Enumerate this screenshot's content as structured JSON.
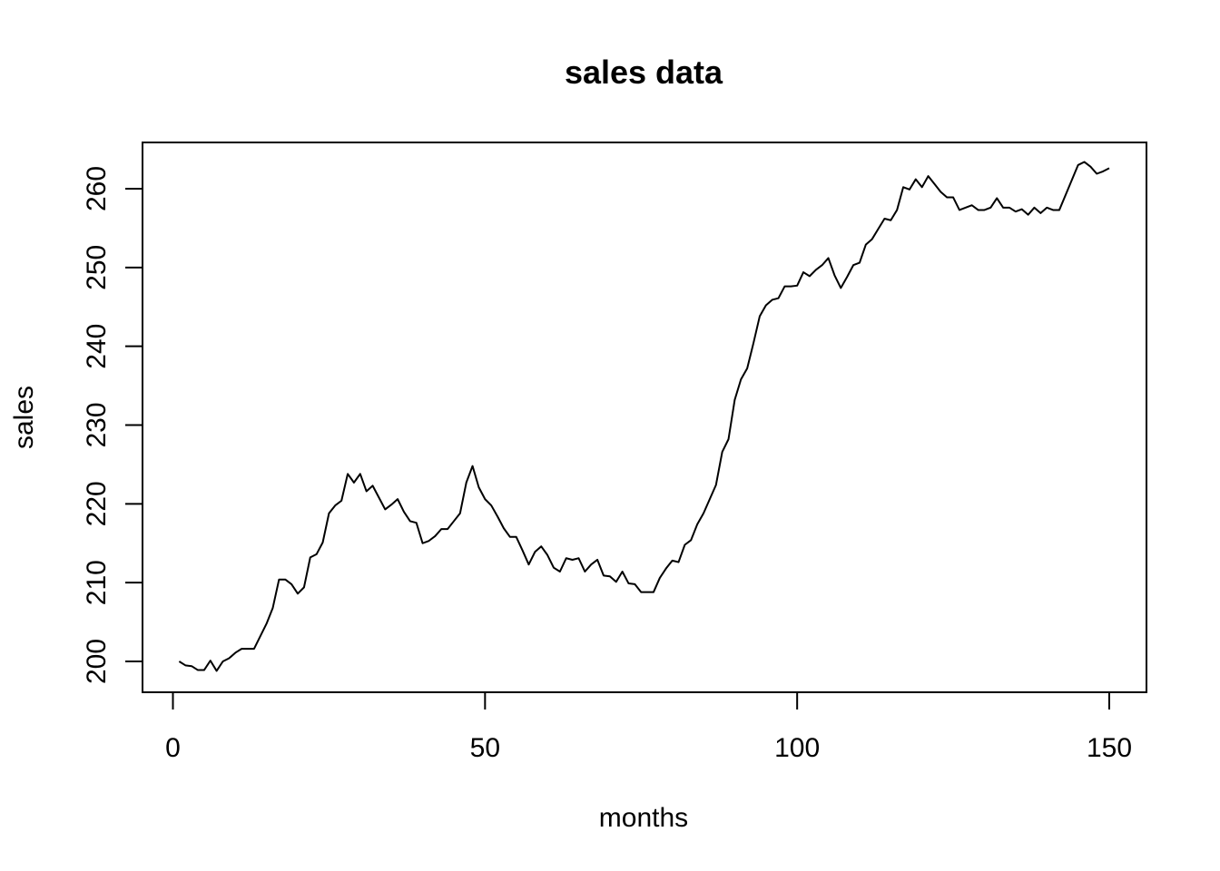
{
  "chart_data": {
    "type": "line",
    "title": "sales data",
    "xlabel": "months",
    "ylabel": "sales",
    "xlim": [
      1,
      150
    ],
    "ylim": [
      197,
      265
    ],
    "xticks": [
      0,
      50,
      100,
      150
    ],
    "yticks": [
      200,
      210,
      220,
      230,
      240,
      250,
      260
    ],
    "grid": false,
    "legend": "none",
    "line_color": "#000000",
    "series": [
      {
        "x": [
          1,
          2,
          3,
          4,
          5,
          6,
          7,
          8,
          9,
          10,
          11,
          12,
          13,
          14,
          15,
          16,
          17,
          18,
          19,
          20,
          21,
          22,
          23,
          24,
          25,
          26,
          27,
          28,
          29,
          30,
          31,
          32,
          33,
          34,
          35,
          36,
          37,
          38,
          39,
          40,
          41,
          42,
          43,
          44,
          45,
          46,
          47,
          48,
          49,
          50,
          51,
          52,
          53,
          54,
          55,
          56,
          57,
          58,
          59,
          60,
          61,
          62,
          63,
          64,
          65,
          66,
          67,
          68,
          69,
          70,
          71,
          72,
          73,
          74,
          75,
          76,
          77,
          78,
          79,
          80,
          81,
          82,
          83,
          84,
          85,
          86,
          87,
          88,
          89,
          90,
          91,
          92,
          93,
          94,
          95,
          96,
          97,
          98,
          99,
          100,
          101,
          102,
          103,
          104,
          105,
          106,
          107,
          108,
          109,
          110,
          111,
          112,
          113,
          114,
          115,
          116,
          117,
          118,
          119,
          120,
          121,
          122,
          123,
          124,
          125,
          126,
          127,
          128,
          129,
          130,
          131,
          132,
          133,
          134,
          135,
          136,
          137,
          138,
          139,
          140,
          141,
          142,
          143,
          144,
          145,
          146,
          147,
          148,
          149,
          150
        ],
        "values": [
          200.0,
          199.5,
          199.4,
          198.9,
          198.9,
          200.1,
          198.8,
          200.0,
          200.4,
          201.1,
          201.6,
          201.6,
          201.6,
          203.2,
          204.8,
          206.8,
          210.4,
          210.4,
          209.8,
          208.6,
          209.4,
          213.2,
          213.6,
          215.1,
          218.8,
          219.8,
          220.4,
          223.8,
          222.7,
          223.8,
          221.6,
          222.3,
          220.8,
          219.3,
          219.9,
          220.6,
          219.0,
          217.8,
          217.6,
          215.0,
          215.3,
          215.9,
          216.8,
          216.8,
          217.8,
          218.8,
          222.7,
          224.8,
          222.1,
          220.6,
          219.8,
          218.4,
          216.9,
          215.8,
          215.8,
          214.1,
          212.3,
          213.9,
          214.6,
          213.5,
          211.9,
          211.4,
          213.1,
          212.9,
          213.1,
          211.4,
          212.3,
          212.9,
          210.9,
          210.8,
          210.1,
          211.4,
          209.9,
          209.8,
          208.8,
          208.8,
          208.8,
          210.6,
          211.8,
          212.8,
          212.6,
          214.8,
          215.4,
          217.4,
          218.8,
          220.6,
          222.4,
          226.6,
          228.2,
          233.2,
          235.8,
          237.2,
          240.4,
          243.8,
          245.2,
          245.9,
          246.1,
          247.6,
          247.6,
          247.7,
          249.4,
          248.9,
          249.7,
          250.3,
          251.2,
          249.0,
          247.4,
          248.8,
          250.3,
          250.6,
          252.9,
          253.6,
          254.9,
          256.2,
          256.0,
          257.3,
          260.2,
          259.9,
          261.2,
          260.2,
          261.6,
          260.6,
          259.6,
          258.9,
          258.9,
          257.3,
          257.6,
          257.9,
          257.3,
          257.3,
          257.6,
          258.8,
          257.6,
          257.6,
          257.1,
          257.4,
          256.7,
          257.6,
          256.9,
          257.6,
          257.3,
          257.3,
          259.2,
          261.1,
          263.0,
          263.4,
          262.8,
          261.9,
          262.2,
          262.6
        ]
      }
    ]
  }
}
